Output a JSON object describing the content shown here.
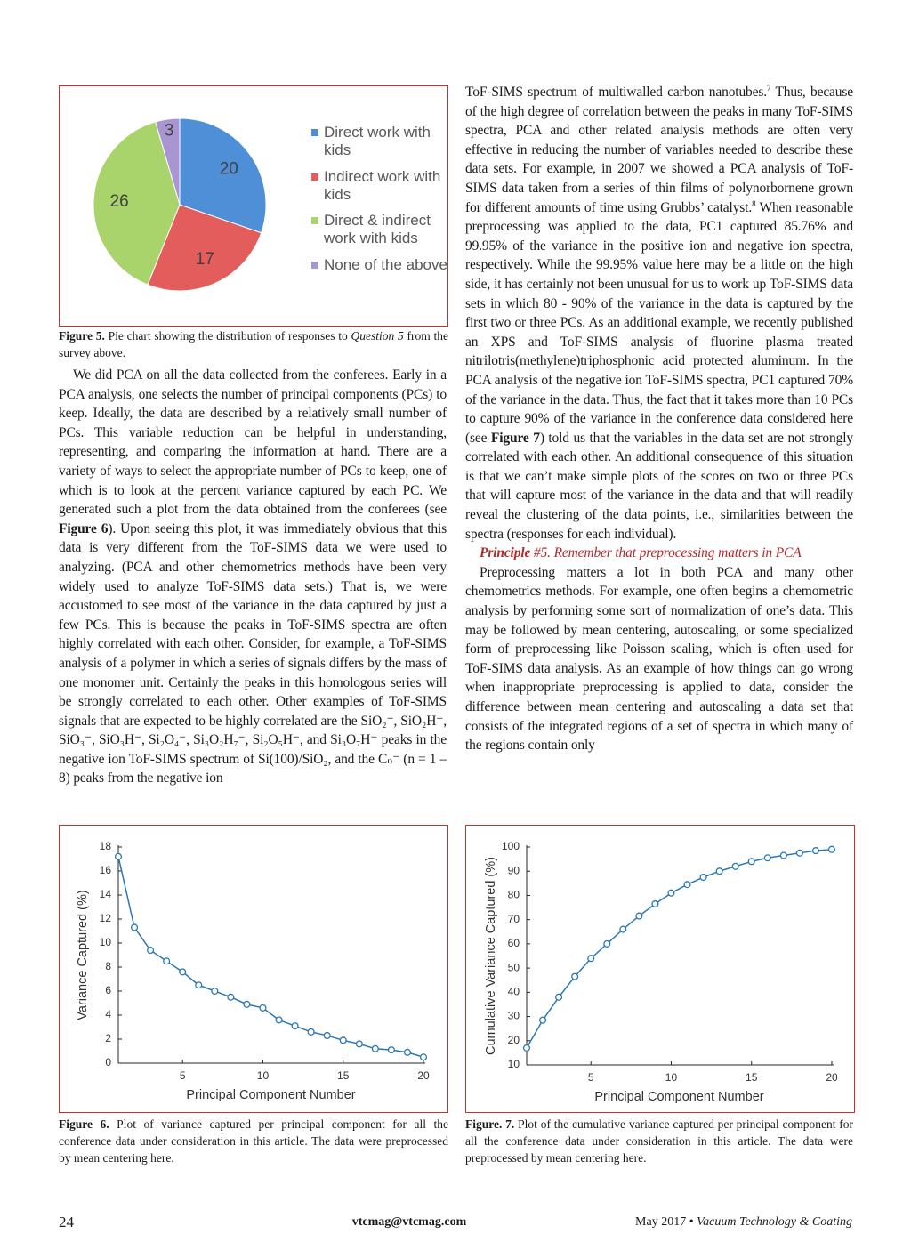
{
  "chart_data": [
    {
      "type": "pie",
      "categories": [
        "Direct work with kids",
        "Indirect work with kids",
        "Direct & indirect work with kids",
        "None of the above"
      ],
      "values": [
        20,
        17,
        26,
        3
      ],
      "colors": [
        "#4f8fd8",
        "#e35d5d",
        "#a8d46b",
        "#a995d2"
      ]
    },
    {
      "type": "line",
      "ylabel": "Variance Captured (%)",
      "xlabel": "Principal Component Number",
      "x": [
        1,
        2,
        3,
        4,
        5,
        6,
        7,
        8,
        9,
        10,
        11,
        12,
        13,
        14,
        15,
        16,
        17,
        18,
        19,
        20
      ],
      "series": [
        {
          "color": "#2a78b8",
          "values": [
            17.2,
            11.3,
            9.4,
            8.5,
            7.6,
            6.5,
            6.0,
            5.5,
            4.9,
            4.6,
            3.6,
            3.1,
            2.6,
            2.3,
            1.9,
            1.6,
            1.2,
            1.1,
            0.9,
            0.5
          ]
        }
      ],
      "xlim": [
        1,
        20
      ],
      "xticks": [
        5,
        10,
        15,
        20
      ],
      "ylim": [
        0,
        18
      ],
      "yticks": [
        0,
        2,
        4,
        6,
        8,
        10,
        12,
        14,
        16,
        18
      ]
    },
    {
      "type": "line",
      "ylabel": "Cumulative Variance Captured (%)",
      "xlabel": "Principal Component Number",
      "x": [
        1,
        2,
        3,
        4,
        5,
        6,
        7,
        8,
        9,
        10,
        11,
        12,
        13,
        14,
        15,
        16,
        17,
        18,
        19,
        20
      ],
      "series": [
        {
          "color": "#2a78b8",
          "values": [
            17,
            28.5,
            38,
            46.5,
            54,
            60,
            66,
            71.5,
            76.5,
            81,
            84.5,
            87.5,
            90,
            92,
            94,
            95.5,
            96.5,
            97.5,
            98.5,
            99
          ]
        }
      ],
      "xlim": [
        1,
        20
      ],
      "xticks": [
        5,
        10,
        15,
        20
      ],
      "ylim": [
        10,
        100
      ],
      "yticks": [
        10,
        20,
        30,
        40,
        50,
        60,
        70,
        80,
        90,
        100
      ]
    }
  ],
  "captions": [
    [
      "Figure 5.",
      " Pie chart showing the distribution of responses to ",
      "Question 5",
      " from the survey above."
    ],
    [
      "Figure 6.",
      " Plot of variance captured per principal component for all the conference data under consideration in this article. The data were preprocessed by mean centering here."
    ],
    [
      "Figure. 7.",
      " Plot of the cumulative variance captured per principal component for all the conference data under consideration in this article. The data were preprocessed by mean centering here."
    ]
  ],
  "left_column": {
    "paragraphs": [
      [
        "We did PCA on all the data collected from the conferees. Early in a PCA analysis, one selects the number of principal components (PCs) to keep. Ideally, the data are described by a relatively small number of PCs. This variable reduction can be helpful in understanding, representing, and comparing the information at hand. There are a variety of ways to select the appropriate number of PCs to keep, one of which is to look at the percent variance captured by each PC. We generated such a plot from the data obtained from the conferees (see ",
        "Figure 6",
        "). Upon seeing this plot, it was immediately obvious that this data is very different from the ToF-SIMS data we were used to analyzing. (PCA and other chemometrics methods have been very widely used to analyze ToF-SIMS data sets.) That is, we were accustomed to see most of the variance in the data captured by just a few PCs. This is because the peaks in ToF-SIMS spectra are often highly correlated with each other. Consider, for example, a ToF-SIMS analysis of a polymer in which a series of signals differs by the mass of one monomer unit. Certainly the peaks in this homologous series will be strongly correlated to each other. Other examples of ToF-SIMS signals that are expected to be highly correlated are the SiO₂⁻, SiO₂H⁻, SiO₃⁻, SiO₃H⁻, Si₂O₄⁻, Si₃O₂H₇⁻, Si₂O₅H⁻, and Si₃O₇H⁻ peaks in the negative ion ToF-SIMS spectrum of Si(100)/SiO₂, and the Cₙ⁻ (n = 1 – 8) peaks from the negative ion"
      ]
    ]
  },
  "right_column": {
    "paragraphs": [
      [
        "ToF-SIMS spectrum of multiwalled carbon nanotubes.",
        "7",
        " Thus, because of the high degree of correlation between the peaks in many ToF-SIMS spectra, PCA and other related analysis methods are often very effective in reducing the number of variables needed to describe these data sets. For example, in 2007 we showed a PCA analysis of ToF-SIMS data taken from a series of thin films of polynorbornene grown for different amounts of time using Grubbs’ catalyst.",
        "8",
        " When reasonable preprocessing was applied to the data, PC1 captured 85.76% and 99.95% of the variance in the positive ion and negative ion spectra, respectively. While the 99.95% value here may be a little on the high side, it has certainly not been unusual for us to work up ToF-SIMS data sets in which 80 - 90% of the variance in the data is captured by the first two or three PCs. As an additional example, we recently published an XPS and ToF-SIMS analysis of fluorine plasma treated nitrilotris(methylene)triphosphonic acid protected aluminum. In the PCA analysis of the negative ion ToF-SIMS spectra, PC1 captured 70% of the variance in the data. Thus, the fact that it takes more than 10 PCs to capture 90% of the variance in the conference data considered here (see ",
        "Figure 7",
        ") told us that the variables in the data set are not strongly correlated with each other. An additional consequence of this situation is that we can’t make simple plots of the scores on two or three PCs that will capture most of the variance in the data and that will readily reveal the clustering of the data points, i.e., similarities between the spectra (responses for each individual)."
      ],
      [
        "Preprocessing matters a lot in both PCA and many other chemometrics methods. For example, one often begins a chemometric analysis by performing some sort of normalization of one’s data. This may be followed by mean centering, autoscaling, or some specialized form of preprocessing like Poisson scaling, which is often used for ToF-SIMS data analysis. As an example of how things can go wrong when inappropriate preprocessing is applied to data, consider the difference between mean centering and autoscaling a data set that consists of the integrated regions of a set of spectra in which many of the regions contain only"
      ]
    ],
    "heading": [
      "Principle",
      " #5. Remember that preprocessing matters in PCA"
    ]
  },
  "footer": {
    "page": "24",
    "email": "vtcmag@vtcmag.com",
    "issue": [
      "May 2017 • ",
      "Vacuum Technology & Coating"
    ]
  }
}
